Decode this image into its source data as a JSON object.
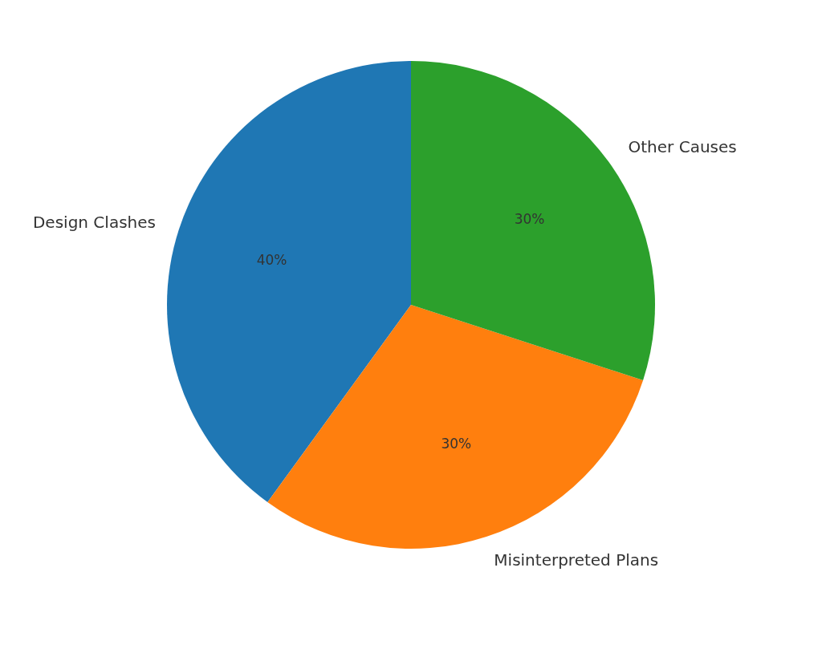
{
  "chart_data": {
    "type": "pie",
    "categories": [
      "Design Clashes",
      "Misinterpreted Plans",
      "Other Causes"
    ],
    "values": [
      40,
      30,
      30
    ],
    "colors": [
      "#1f77b4",
      "#ff7f0e",
      "#2ca02c"
    ],
    "value_labels": [
      "40%",
      "30%",
      "30%"
    ],
    "legend": false
  }
}
